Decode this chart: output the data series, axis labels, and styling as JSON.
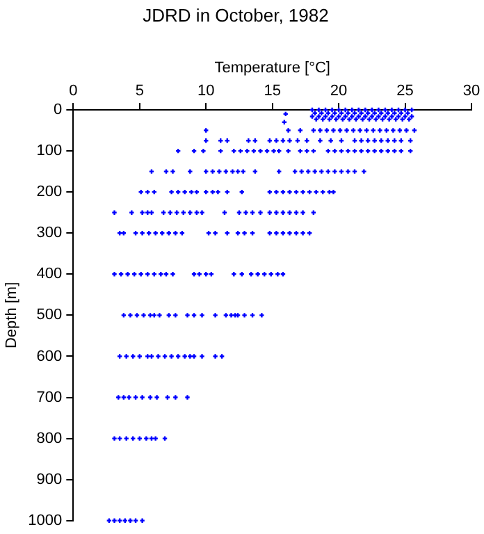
{
  "chart_data": {
    "type": "scatter",
    "title": "JDRD in October, 1982",
    "xlabel": "Temperature [°C]",
    "ylabel": "Depth [m]",
    "xlim": [
      0,
      30
    ],
    "xticks": [
      0,
      5,
      10,
      15,
      20,
      25,
      30
    ],
    "ylim": [
      1000,
      0
    ],
    "yticks": [
      0,
      100,
      200,
      300,
      400,
      500,
      600,
      700,
      800,
      900,
      1000
    ],
    "grid": false,
    "legend": false,
    "marker": "cross",
    "series": [
      {
        "color": "#0000ff",
        "x": [
          18,
          18.5,
          19,
          19.5,
          20,
          20.5,
          21,
          21.5,
          22,
          22.5,
          23,
          23.5,
          24,
          24.5,
          25,
          25.5
        ],
        "values": [
          0,
          0,
          0,
          0,
          0,
          0,
          0,
          0,
          0,
          0,
          0,
          0,
          0,
          0,
          0,
          0
        ]
      },
      {
        "color": "#0000ff",
        "x": [
          18.2,
          18.7,
          19.2,
          19.7,
          20.2,
          20.7,
          21.2,
          21.7,
          22.2,
          22.7,
          23.2,
          23.7,
          24.2,
          24.7,
          25.2
        ],
        "values": [
          8,
          8,
          8,
          8,
          8,
          8,
          8,
          8,
          8,
          8,
          8,
          8,
          8,
          8,
          8
        ]
      },
      {
        "color": "#0000ff",
        "x": [
          18,
          18.5,
          19,
          19.5,
          20,
          20.5,
          21,
          21.5,
          22,
          22.5,
          23,
          23.5,
          24,
          24.5,
          25,
          25.5
        ],
        "values": [
          16,
          16,
          16,
          16,
          16,
          16,
          16,
          16,
          16,
          16,
          16,
          16,
          16,
          16,
          16,
          16
        ]
      },
      {
        "color": "#0000ff",
        "x": [
          18.3,
          18.8,
          19.3,
          19.8,
          20.3,
          20.8,
          21.3,
          21.8,
          22.3,
          22.8,
          23.3,
          23.8,
          24.3,
          24.8,
          25.3
        ],
        "values": [
          23,
          23,
          23,
          23,
          23,
          23,
          23,
          23,
          23,
          23,
          23,
          23,
          23,
          23,
          23
        ]
      },
      {
        "color": "#0000ff",
        "x": [
          16,
          15.9,
          10,
          16.2,
          17.1,
          18.1,
          18.6,
          19.1,
          19.6,
          20.1,
          20.6,
          21.1,
          21.6,
          22.1,
          22.6,
          23.1,
          23.6,
          24.1,
          24.6,
          25.1,
          25.7
        ],
        "values": [
          10,
          30,
          50,
          50,
          50,
          50,
          50,
          50,
          50,
          50,
          50,
          50,
          50,
          50,
          50,
          50,
          50,
          50,
          50,
          50,
          50
        ]
      },
      {
        "color": "#0000ff",
        "x": [
          10,
          11.1,
          11.6,
          13.2,
          13.7,
          14.8,
          15.3,
          15.8,
          16.3,
          16.9,
          17.6,
          18.6,
          19.4,
          20.2,
          21.2,
          21.7,
          22.2,
          22.7,
          23.2,
          23.7,
          24.2,
          24.7,
          25.4
        ],
        "values": [
          75,
          75,
          75,
          75,
          75,
          75,
          75,
          75,
          75,
          75,
          75,
          75,
          75,
          75,
          75,
          75,
          75,
          75,
          75,
          75,
          75,
          75,
          75
        ]
      },
      {
        "color": "#0000ff",
        "x": [
          7.9,
          9.1,
          9.8,
          11.1,
          12.1,
          12.6,
          13.1,
          13.6,
          14.1,
          14.6,
          15.1,
          15.5,
          16.2,
          17.1,
          17.6,
          18.1,
          19.2,
          19.7,
          20.2,
          20.7,
          21.2,
          21.7,
          22.2,
          22.7,
          23.2,
          23.7,
          24.2,
          24.7,
          25.4
        ],
        "values": [
          100,
          100,
          100,
          100,
          100,
          100,
          100,
          100,
          100,
          100,
          100,
          100,
          100,
          100,
          100,
          100,
          100,
          100,
          100,
          100,
          100,
          100,
          100,
          100,
          100,
          100,
          100,
          100,
          100
        ]
      },
      {
        "color": "#0000ff",
        "x": [
          5.9,
          7,
          7.5,
          8.8,
          10,
          10.5,
          11,
          11.5,
          12,
          12.4,
          12.8,
          13.7,
          15.5,
          16.7,
          17.2,
          17.7,
          18.2,
          18.7,
          19.2,
          19.7,
          20.2,
          20.7,
          21.2,
          21.9
        ],
        "values": [
          150,
          150,
          150,
          150,
          150,
          150,
          150,
          150,
          150,
          150,
          150,
          150,
          150,
          150,
          150,
          150,
          150,
          150,
          150,
          150,
          150,
          150,
          150,
          150
        ]
      },
      {
        "color": "#0000ff",
        "x": [
          5.1,
          5.6,
          6.1,
          7.4,
          7.9,
          8.4,
          8.9,
          9.3,
          10,
          10.5,
          10.9,
          11.6,
          12.7,
          14.8,
          15.3,
          15.8,
          16.3,
          16.8,
          17.3,
          17.8,
          18.3,
          18.8,
          19.3,
          19.6
        ],
        "values": [
          200,
          200,
          200,
          200,
          200,
          200,
          200,
          200,
          200,
          200,
          200,
          200,
          200,
          200,
          200,
          200,
          200,
          200,
          200,
          200,
          200,
          200,
          200,
          200
        ]
      },
      {
        "color": "#0000ff",
        "x": [
          3.1,
          4.4,
          5.2,
          5.6,
          5.9,
          6.8,
          7.3,
          7.8,
          8.3,
          8.8,
          9.3,
          9.7,
          11.4,
          12.5,
          13,
          13.5,
          14.1,
          14.8,
          15.3,
          15.8,
          16.3,
          16.8,
          17.3,
          18.1
        ],
        "values": [
          250,
          250,
          250,
          250,
          250,
          250,
          250,
          250,
          250,
          250,
          250,
          250,
          250,
          250,
          250,
          250,
          250,
          250,
          250,
          250,
          250,
          250,
          250,
          250
        ]
      },
      {
        "color": "#0000ff",
        "x": [
          3.5,
          3.8,
          4.7,
          5.2,
          5.7,
          6.2,
          6.7,
          7.2,
          7.7,
          8.2,
          10.2,
          10.7,
          11.6,
          12.4,
          12.9,
          13.5,
          14.8,
          15.3,
          15.8,
          16.3,
          16.8,
          17.3,
          17.8
        ],
        "values": [
          300,
          300,
          300,
          300,
          300,
          300,
          300,
          300,
          300,
          300,
          300,
          300,
          300,
          300,
          300,
          300,
          300,
          300,
          300,
          300,
          300,
          300,
          300
        ]
      },
      {
        "color": "#0000ff",
        "x": [
          3.1,
          3.6,
          4.1,
          4.6,
          5.1,
          5.6,
          6.1,
          6.6,
          7,
          7.5,
          9.1,
          9.5,
          10,
          10.4,
          12.1,
          12.7,
          13.4,
          13.9,
          14.4,
          14.9,
          15.4,
          15.8
        ],
        "values": [
          400,
          400,
          400,
          400,
          400,
          400,
          400,
          400,
          400,
          400,
          400,
          400,
          400,
          400,
          400,
          400,
          400,
          400,
          400,
          400,
          400,
          400
        ]
      },
      {
        "color": "#0000ff",
        "x": [
          3.8,
          4.3,
          4.8,
          5.3,
          5.8,
          6.1,
          6.5,
          7.2,
          7.7,
          8.6,
          9.1,
          9.7,
          10.7,
          11.5,
          11.9,
          12.2,
          12.4,
          12.9,
          13.5,
          14.2
        ],
        "values": [
          500,
          500,
          500,
          500,
          500,
          500,
          500,
          500,
          500,
          500,
          500,
          500,
          500,
          500,
          500,
          500,
          500,
          500,
          500,
          500
        ]
      },
      {
        "color": "#0000ff",
        "x": [
          3.5,
          4,
          4.5,
          5,
          5.6,
          5.9,
          6.4,
          6.9,
          7.4,
          7.9,
          8.4,
          8.8,
          9.1,
          9.7,
          10.7,
          11.2
        ],
        "values": [
          600,
          600,
          600,
          600,
          600,
          600,
          600,
          600,
          600,
          600,
          600,
          600,
          600,
          600,
          600,
          600
        ]
      },
      {
        "color": "#0000ff",
        "x": [
          3.4,
          3.8,
          4.2,
          4.7,
          5.2,
          5.8,
          6.3,
          7.1,
          7.7,
          8.6
        ],
        "values": [
          700,
          700,
          700,
          700,
          700,
          700,
          700,
          700,
          700,
          700
        ]
      },
      {
        "color": "#0000ff",
        "x": [
          3.1,
          3.5,
          4,
          4.5,
          5,
          5.5,
          5.9,
          6.2,
          6.9
        ],
        "values": [
          800,
          800,
          800,
          800,
          800,
          800,
          800,
          800,
          800
        ]
      },
      {
        "color": "#0000ff",
        "x": [
          2.7,
          3.1,
          3.5,
          3.9,
          4.3,
          4.7,
          5.2
        ],
        "values": [
          1000,
          1000,
          1000,
          1000,
          1000,
          1000,
          1000
        ]
      }
    ]
  }
}
